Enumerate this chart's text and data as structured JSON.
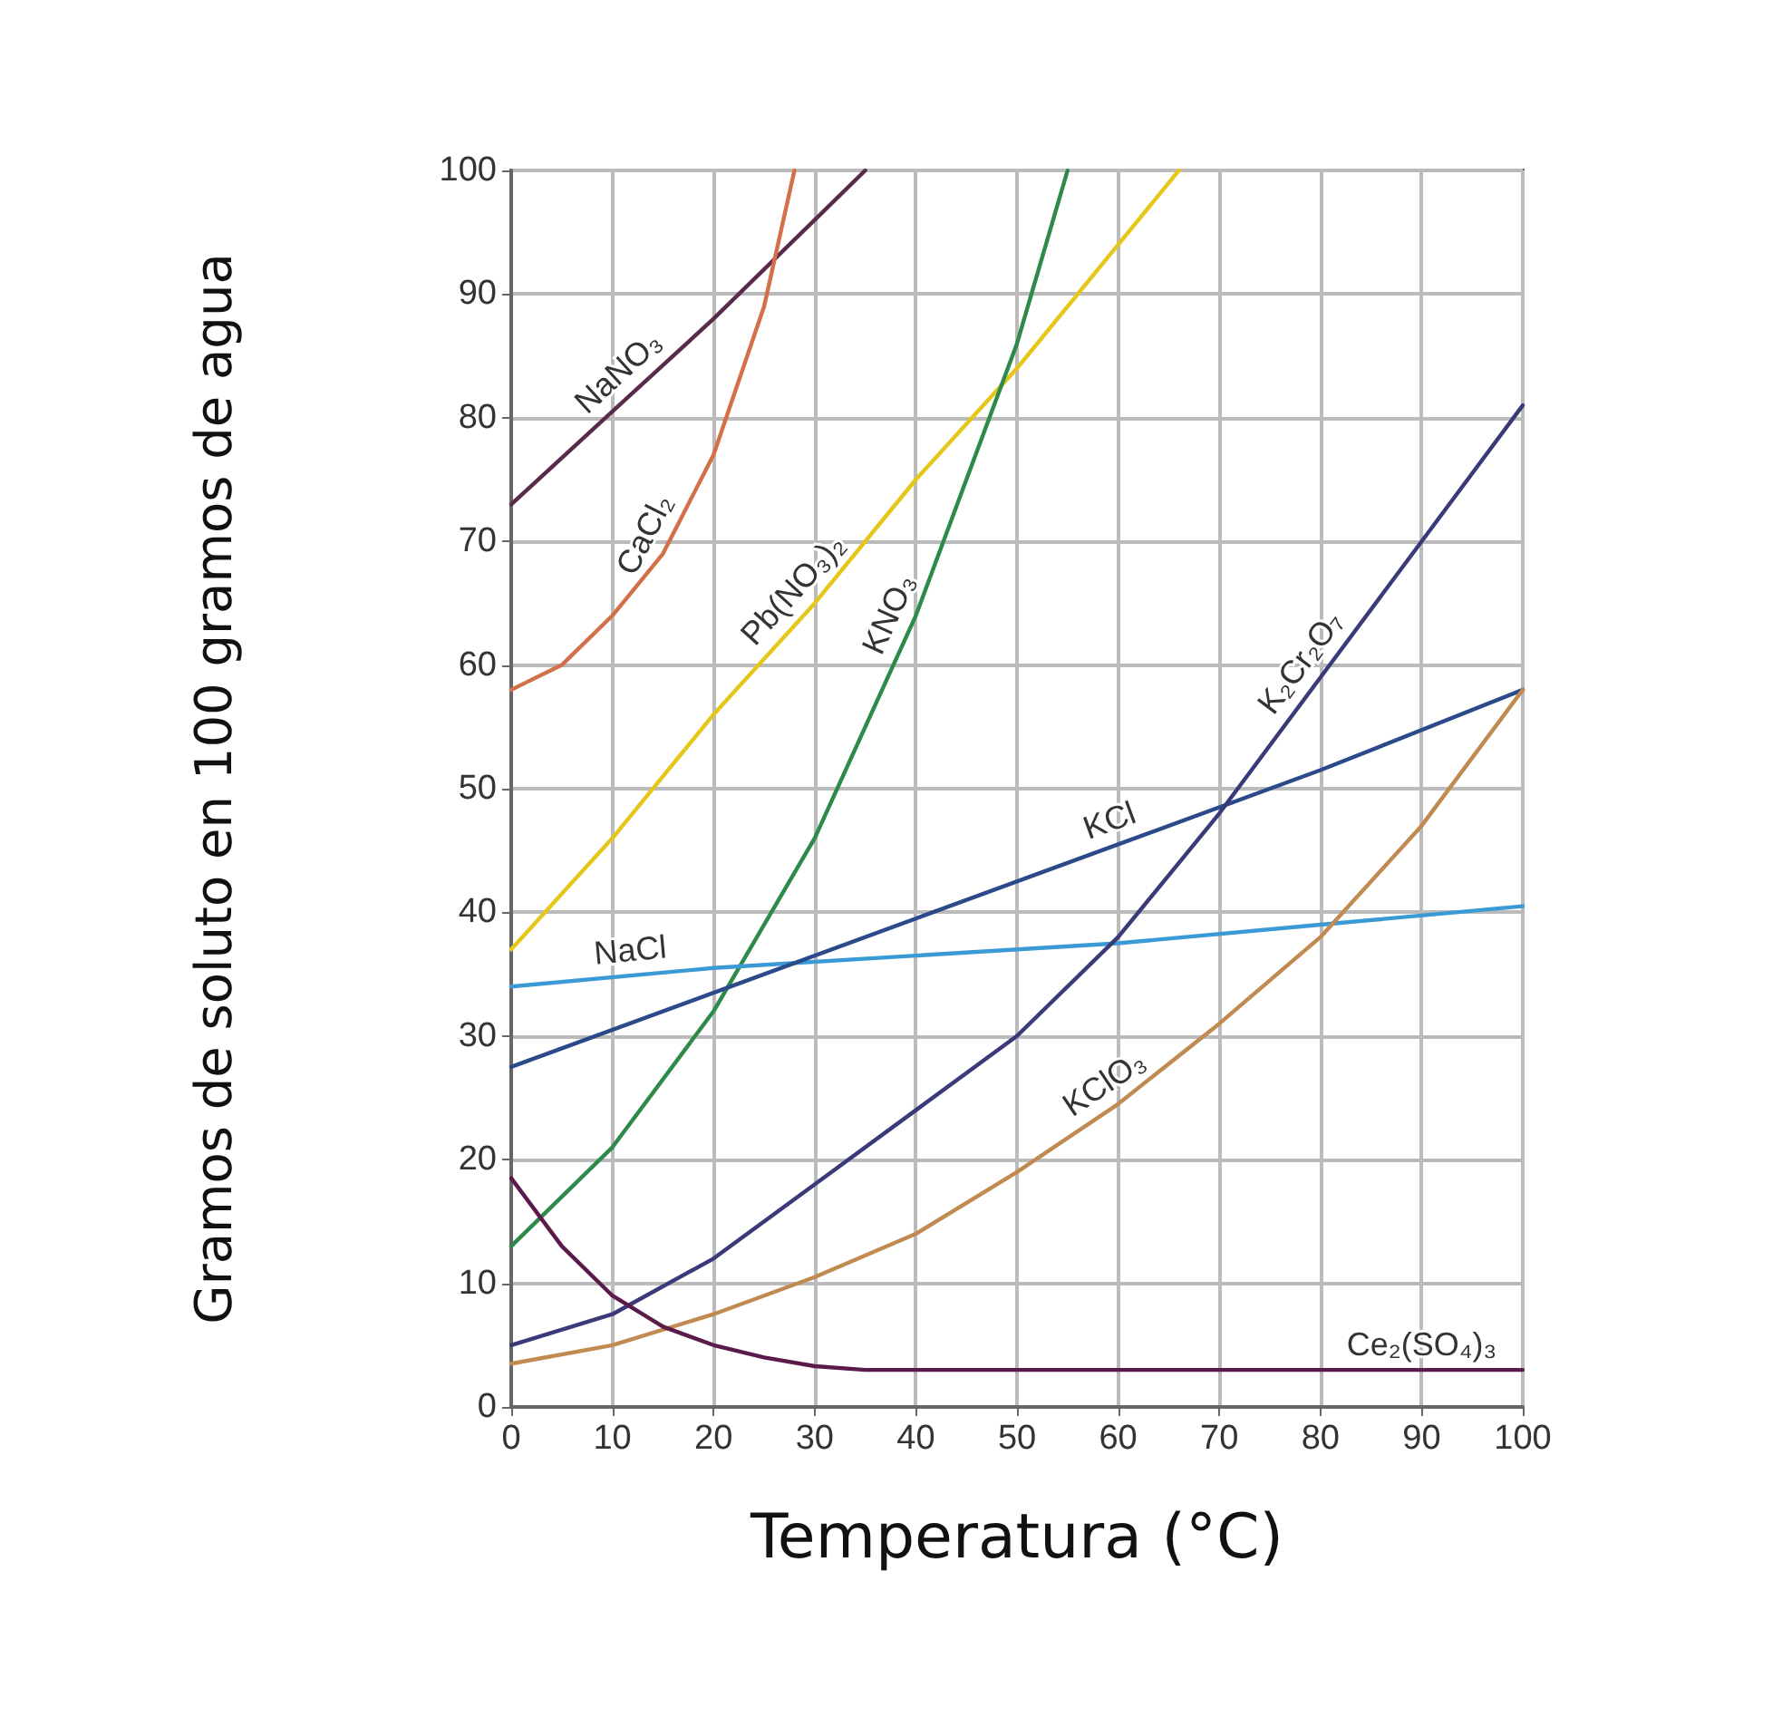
{
  "chart_data": {
    "type": "line",
    "xlabel": "Temperatura (°C)",
    "ylabel": "Gramos de soluto en 100 gramos de agua",
    "xlim": [
      0,
      100
    ],
    "xticks": [
      0,
      10,
      20,
      30,
      40,
      50,
      60,
      70,
      80,
      90,
      100
    ],
    "ylim": [
      0,
      100
    ],
    "yticks": [
      0,
      10,
      20,
      30,
      40,
      50,
      60,
      70,
      80,
      90,
      100
    ],
    "grid": true,
    "legend": false,
    "marker": "none",
    "line_style": "solid",
    "series": [
      {
        "name": "NaNO₃",
        "color": "#5a2a4a",
        "x": [
          0,
          10,
          20,
          30,
          35
        ],
        "values": [
          73,
          80.5,
          88,
          96,
          100
        ]
      },
      {
        "name": "CaCl₂",
        "color": "#d2704a",
        "x": [
          0,
          5,
          10,
          15,
          20,
          25,
          28
        ],
        "values": [
          58,
          60,
          64,
          69,
          77,
          89,
          100
        ]
      },
      {
        "name": "Pb(NO₃)₂",
        "color": "#e6c619",
        "x": [
          0,
          10,
          20,
          30,
          40,
          50,
          60,
          66
        ],
        "values": [
          37,
          46,
          56,
          65,
          75,
          84,
          94,
          100
        ]
      },
      {
        "name": "KNO₃",
        "color": "#2e8a4a",
        "x": [
          0,
          10,
          20,
          30,
          40,
          50,
          55
        ],
        "values": [
          13,
          21,
          32,
          46,
          64,
          86,
          100
        ]
      },
      {
        "name": "NaCl",
        "color": "#3a9ad6",
        "x": [
          0,
          20,
          40,
          60,
          80,
          100
        ],
        "values": [
          34,
          35.5,
          36.5,
          37.5,
          39,
          40.5
        ]
      },
      {
        "name": "KCl",
        "color": "#2a4a8a",
        "x": [
          0,
          20,
          40,
          60,
          80,
          100
        ],
        "values": [
          27.5,
          33.5,
          39.5,
          45.5,
          51.5,
          58
        ]
      },
      {
        "name": "K₂Cr₂O₇",
        "color": "#3a3a7a",
        "x": [
          0,
          10,
          20,
          30,
          40,
          50,
          60,
          70,
          80,
          90,
          100
        ],
        "values": [
          5,
          7.5,
          12,
          18,
          24,
          30,
          38,
          48,
          59,
          70,
          81
        ]
      },
      {
        "name": "KClO₃",
        "color": "#c08a50",
        "x": [
          0,
          10,
          20,
          30,
          40,
          50,
          60,
          70,
          80,
          90,
          100
        ],
        "values": [
          3.5,
          5,
          7.5,
          10.5,
          14,
          19,
          24.5,
          31,
          38,
          47,
          58
        ]
      },
      {
        "name": "Ce₂(SO₄)₃",
        "color": "#5a1a4a",
        "x": [
          0,
          5,
          10,
          15,
          20,
          25,
          30,
          35,
          100
        ],
        "values": [
          18.5,
          13,
          9,
          6.5,
          5,
          4,
          3.3,
          3,
          3
        ]
      }
    ]
  }
}
